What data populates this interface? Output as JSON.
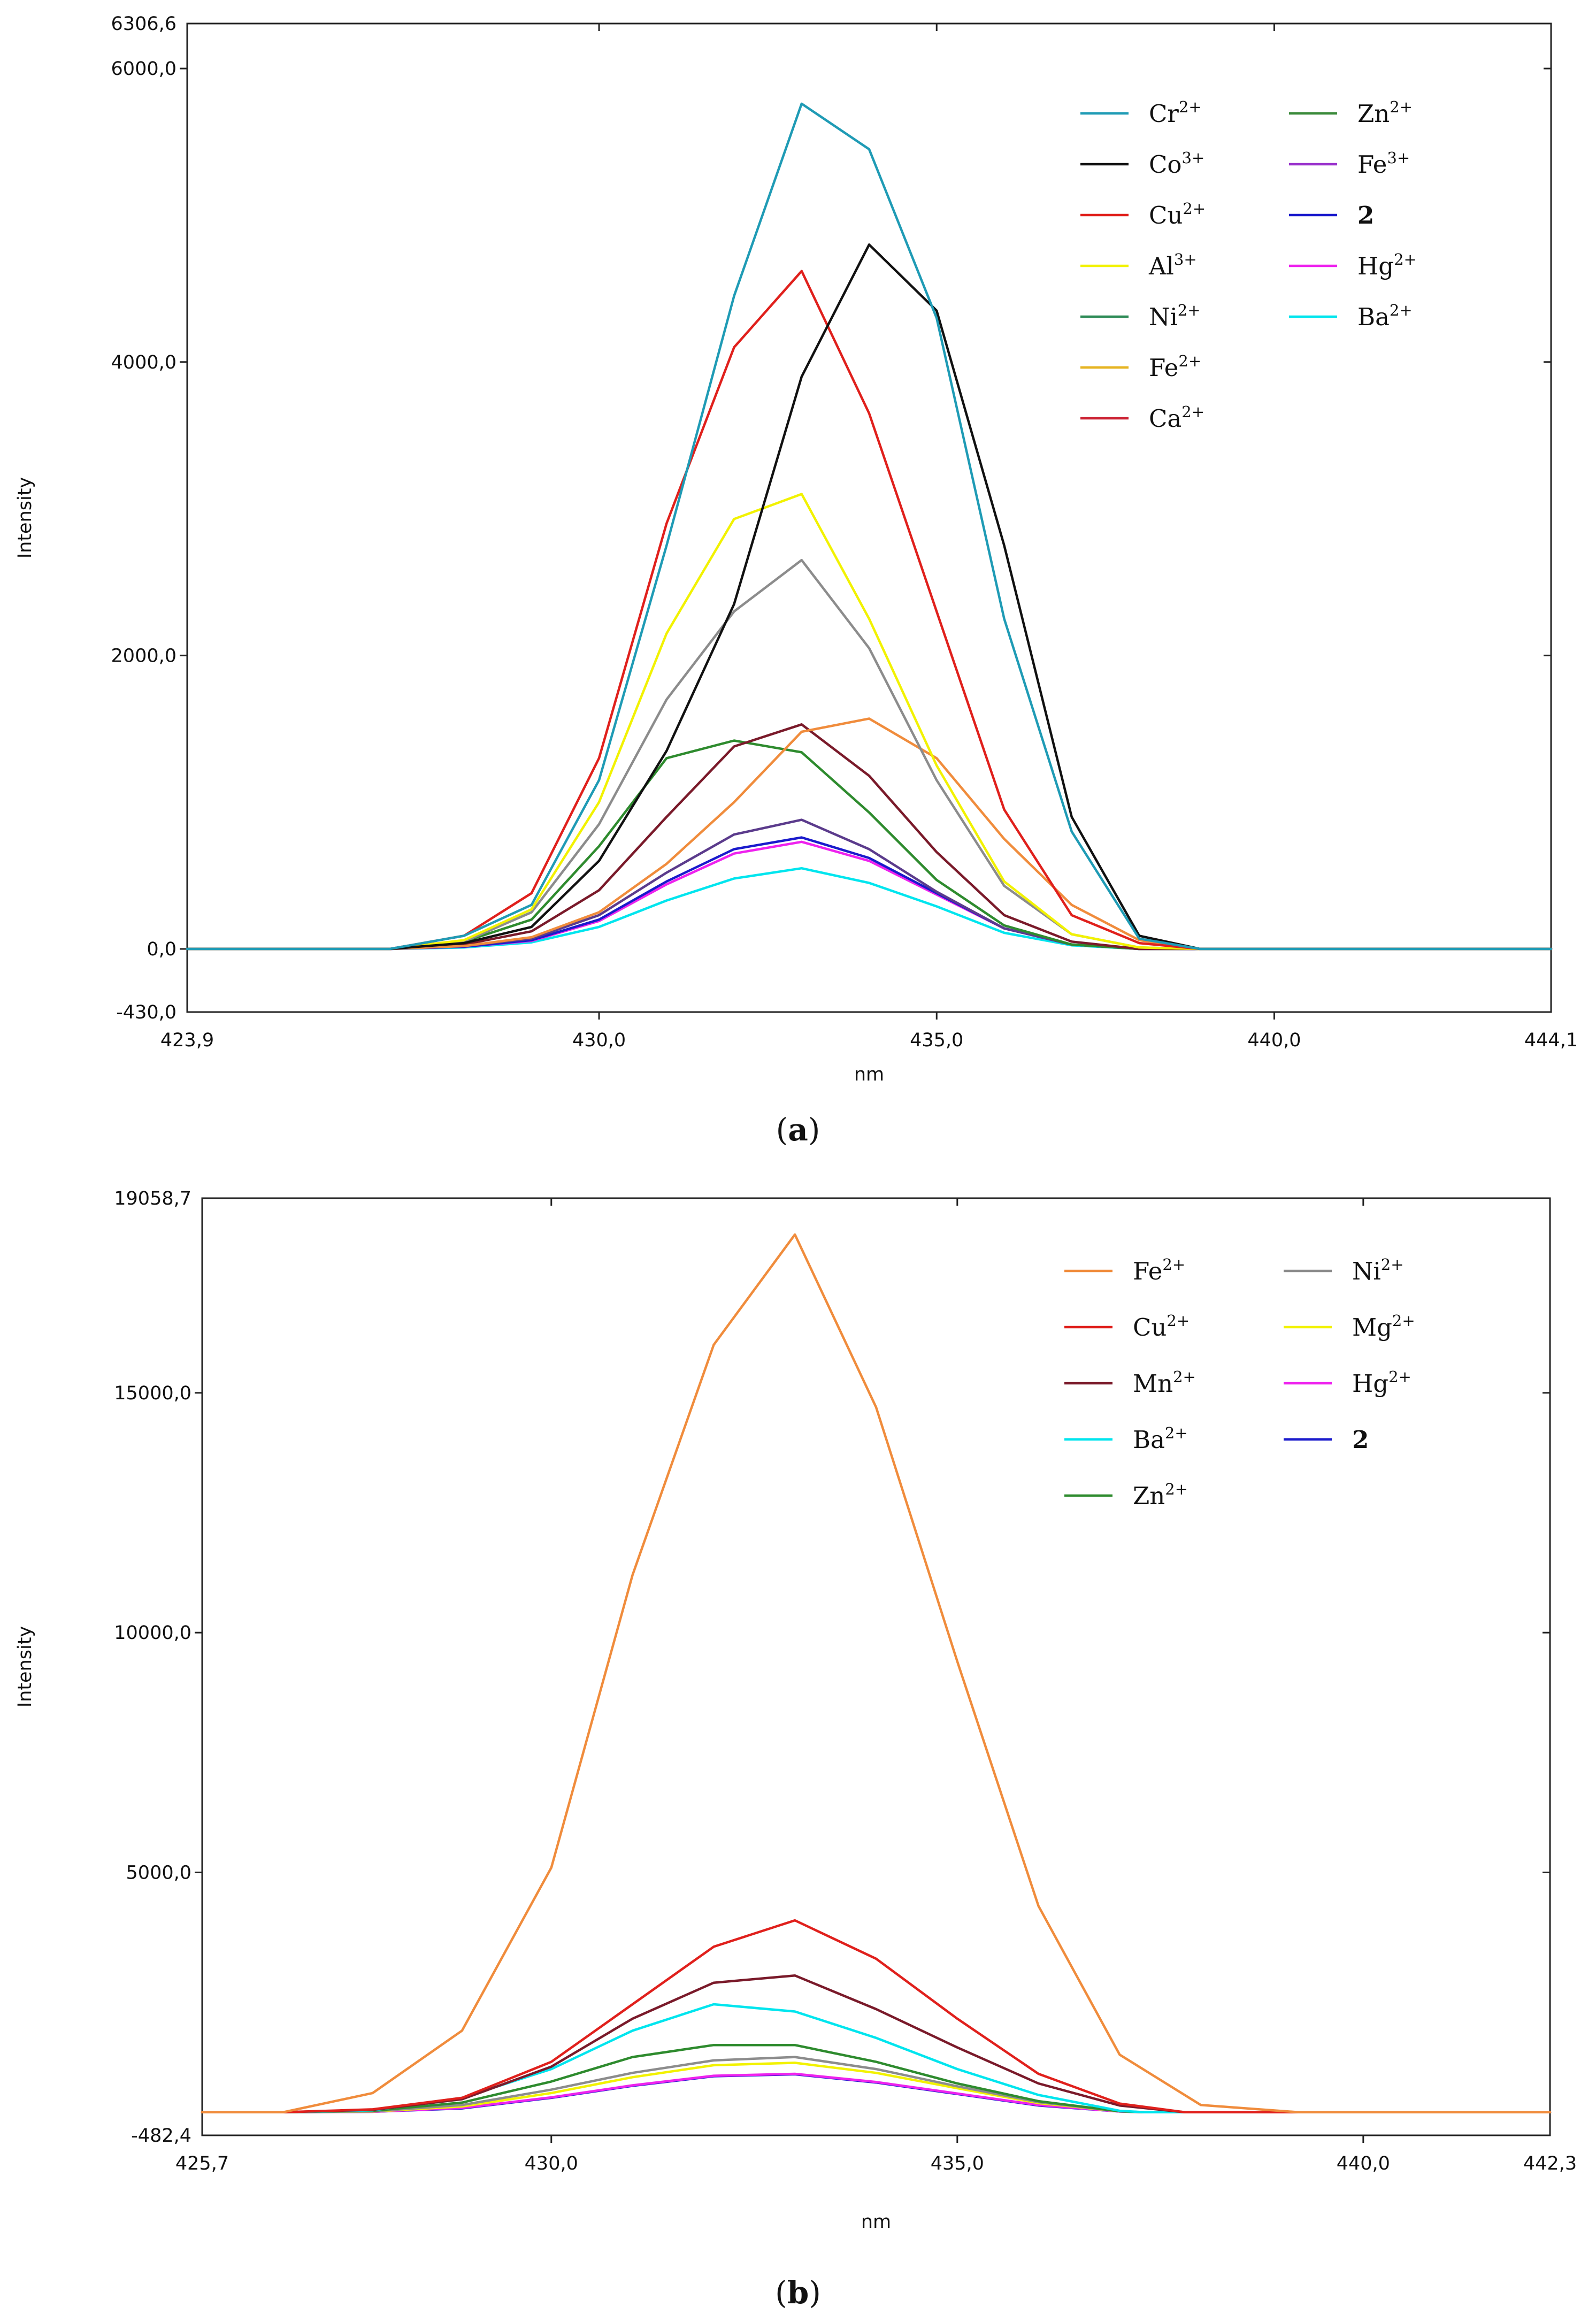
{
  "captions": [
    "(a)",
    "(b)"
  ],
  "caption_letters": [
    "a",
    "b"
  ],
  "chart_data": [
    {
      "type": "line",
      "panel": "a",
      "xlabel": "nm",
      "ylabel": "Intensity",
      "xlim": [
        423.9,
        444.1
      ],
      "ylim": [
        -430.0,
        6306.6
      ],
      "xticks": [
        430.0,
        435.0,
        440.0
      ],
      "yticks": [
        0.0,
        2000.0,
        4000.0,
        6000.0
      ],
      "x_edge_labels": [
        "423,9",
        "444,1"
      ],
      "y_edge_labels": [
        "-430,0",
        "6306,6"
      ],
      "xtick_labels": [
        "430,0",
        "435,0",
        "440,0"
      ],
      "ytick_labels": [
        "0,0",
        "2000,0",
        "4000,0",
        "6000,0"
      ],
      "legend_columns": 2,
      "legend": [
        {
          "base": "Cr",
          "sup": "2+",
          "color": "#1f9bb5"
        },
        {
          "base": "Co",
          "sup": "3+",
          "color": "#111111"
        },
        {
          "base": "Cu",
          "sup": "2+",
          "color": "#e0201c"
        },
        {
          "base": "Al",
          "sup": "3+",
          "color": "#f2f200"
        },
        {
          "base": "Ni",
          "sup": "2+",
          "color": "#2e8b57"
        },
        {
          "base": "Fe",
          "sup": "2+",
          "color": "#e6b422"
        },
        {
          "base": "Ca",
          "sup": "2+",
          "color": "#cc2233"
        },
        {
          "base": "Zn",
          "sup": "2+",
          "color": "#3a8a3a"
        },
        {
          "base": "Fe",
          "sup": "3+",
          "color": "#9932cc"
        },
        {
          "base": "2",
          "sup": "",
          "color": "#1a1acc",
          "bold": true
        },
        {
          "base": "Hg",
          "sup": "2+",
          "color": "#ee22ee"
        },
        {
          "base": "Ba",
          "sup": "2+",
          "color": "#00e5ee"
        }
      ],
      "series": [
        {
          "name": "Cr2+",
          "color": "#1f9bb5",
          "x": [
            423.9,
            426.9,
            428.0,
            429.0,
            430.0,
            431.0,
            432.0,
            433.0,
            434.0,
            435.0,
            436.0,
            437.0,
            438.0,
            438.9,
            444.1
          ],
          "y": [
            0,
            0,
            90,
            300,
            1150,
            2750,
            4450,
            5760,
            5450,
            4300,
            2250,
            800,
            70,
            0,
            0
          ]
        },
        {
          "name": "Co3+",
          "color": "#111111",
          "x": [
            423.9,
            426.9,
            428.0,
            429.0,
            430.0,
            431.0,
            432.0,
            433.0,
            434.0,
            435.0,
            436.0,
            437.0,
            438.0,
            438.9,
            444.1
          ],
          "y": [
            0,
            0,
            40,
            150,
            600,
            1350,
            2350,
            3900,
            4800,
            4350,
            2750,
            900,
            90,
            0,
            0
          ]
        },
        {
          "name": "Cu2+",
          "color": "#e0201c",
          "x": [
            423.9,
            426.9,
            428.0,
            429.0,
            430.0,
            431.0,
            432.0,
            433.0,
            434.0,
            435.0,
            436.0,
            437.0,
            438.0,
            438.9,
            444.1
          ],
          "y": [
            0,
            0,
            90,
            380,
            1300,
            2900,
            4100,
            4620,
            3650,
            2300,
            950,
            230,
            40,
            0,
            0
          ]
        },
        {
          "name": "Al3+",
          "color": "#f2f200",
          "x": [
            423.9,
            426.9,
            428.0,
            429.0,
            430.0,
            431.0,
            432.0,
            433.0,
            434.0,
            435.0,
            436.0,
            437.0,
            438.0,
            438.9,
            444.1
          ],
          "y": [
            0,
            0,
            60,
            270,
            1000,
            2150,
            2930,
            3100,
            2250,
            1250,
            460,
            100,
            10,
            0,
            0
          ]
        },
        {
          "name": "Ni2+",
          "color": "#8c8c8c",
          "x": [
            423.9,
            426.9,
            428.0,
            429.0,
            430.0,
            431.0,
            432.0,
            433.0,
            434.0,
            435.0,
            436.0,
            437.0,
            438.0,
            438.9,
            444.1
          ],
          "y": [
            0,
            0,
            50,
            250,
            850,
            1700,
            2300,
            2650,
            2050,
            1150,
            430,
            100,
            10,
            0,
            0
          ]
        },
        {
          "name": "Fe2+",
          "color": "#f08c3c",
          "x": [
            423.9,
            426.9,
            428.0,
            429.0,
            430.0,
            431.0,
            432.0,
            433.0,
            434.0,
            435.0,
            436.0,
            437.0,
            438.0,
            438.9,
            444.1
          ],
          "y": [
            0,
            0,
            20,
            80,
            250,
            580,
            1000,
            1480,
            1570,
            1300,
            750,
            300,
            60,
            0,
            0
          ]
        },
        {
          "name": "Ca2+",
          "color": "#7a1a2a",
          "x": [
            423.9,
            426.9,
            428.0,
            429.0,
            430.0,
            431.0,
            432.0,
            433.0,
            434.0,
            435.0,
            436.0,
            437.0,
            438.0,
            438.9,
            444.1
          ],
          "y": [
            0,
            0,
            30,
            120,
            400,
            900,
            1380,
            1530,
            1180,
            660,
            230,
            50,
            0,
            0,
            0
          ]
        },
        {
          "name": "Zn2+",
          "color": "#2e8b2e",
          "x": [
            423.9,
            426.9,
            428.0,
            429.0,
            430.0,
            431.0,
            432.0,
            433.0,
            434.0,
            435.0,
            436.0,
            437.0,
            438.0,
            438.9,
            444.1
          ],
          "y": [
            0,
            0,
            50,
            200,
            700,
            1300,
            1420,
            1340,
            930,
            470,
            160,
            30,
            0,
            0,
            0
          ]
        },
        {
          "name": "Fe3+",
          "color": "#5b3b8c",
          "x": [
            423.9,
            426.9,
            428.0,
            429.0,
            430.0,
            431.0,
            432.0,
            433.0,
            434.0,
            435.0,
            436.0,
            437.0,
            438.0,
            438.9,
            444.1
          ],
          "y": [
            0,
            0,
            20,
            70,
            230,
            520,
            780,
            880,
            680,
            390,
            140,
            30,
            0,
            0,
            0
          ]
        },
        {
          "name": "2",
          "color": "#1a1acc",
          "x": [
            423.9,
            426.9,
            428.0,
            429.0,
            430.0,
            431.0,
            432.0,
            433.0,
            434.0,
            435.0,
            436.0,
            437.0,
            438.0,
            438.9,
            444.1
          ],
          "y": [
            0,
            0,
            15,
            60,
            200,
            460,
            680,
            760,
            620,
            380,
            140,
            30,
            0,
            0,
            0
          ]
        },
        {
          "name": "Hg2+",
          "color": "#ee22ee",
          "x": [
            423.9,
            426.9,
            428.0,
            429.0,
            430.0,
            431.0,
            432.0,
            433.0,
            434.0,
            435.0,
            436.0,
            437.0,
            438.0,
            438.9,
            444.1
          ],
          "y": [
            0,
            0,
            15,
            55,
            190,
            440,
            650,
            730,
            600,
            370,
            140,
            30,
            0,
            0,
            0
          ]
        },
        {
          "name": "Ba2+",
          "color": "#00e5ee",
          "x": [
            423.9,
            426.9,
            428.0,
            429.0,
            430.0,
            431.0,
            432.0,
            433.0,
            434.0,
            435.0,
            436.0,
            437.0,
            438.0,
            438.9,
            444.1
          ],
          "y": [
            0,
            0,
            10,
            45,
            150,
            330,
            480,
            550,
            450,
            290,
            110,
            25,
            0,
            0,
            0
          ]
        }
      ]
    },
    {
      "type": "line",
      "panel": "b",
      "xlabel": "nm",
      "ylabel": "Intensity",
      "xlim": [
        425.7,
        442.3
      ],
      "ylim": [
        -482.4,
        19058.7
      ],
      "xticks": [
        430.0,
        435.0,
        440.0
      ],
      "yticks": [
        5000.0,
        10000.0,
        15000.0
      ],
      "x_edge_labels": [
        "425,7",
        "442,3"
      ],
      "y_edge_labels": [
        "-482,4",
        "19058,7"
      ],
      "xtick_labels": [
        "430,0",
        "435,0",
        "440,0"
      ],
      "ytick_labels": [
        "5000,0",
        "10000,0",
        "15000,0"
      ],
      "legend_columns": 2,
      "legend": [
        {
          "base": "Fe",
          "sup": "2+",
          "color": "#f08c3c"
        },
        {
          "base": "Cu",
          "sup": "2+",
          "color": "#e0201c"
        },
        {
          "base": "Mn",
          "sup": "2+",
          "color": "#7a1a2a"
        },
        {
          "base": "Ba",
          "sup": "2+",
          "color": "#00e5ee"
        },
        {
          "base": "Zn",
          "sup": "2+",
          "color": "#2e8b2e"
        },
        {
          "base": "Ni",
          "sup": "2+",
          "color": "#8c8c8c"
        },
        {
          "base": "Mg",
          "sup": "2+",
          "color": "#f2f200"
        },
        {
          "base": "Hg",
          "sup": "2+",
          "color": "#ee22ee"
        },
        {
          "base": "2",
          "sup": "",
          "color": "#1a1acc",
          "bold": true
        }
      ],
      "series": [
        {
          "name": "Fe2+",
          "color": "#f08c3c",
          "x": [
            425.7,
            426.7,
            427.8,
            428.9,
            430.0,
            431.0,
            432.0,
            433.0,
            434.0,
            435.0,
            436.0,
            437.0,
            438.0,
            439.2,
            442.3
          ],
          "y": [
            0,
            0,
            400,
            1700,
            5100,
            11200,
            16000,
            18300,
            14700,
            9400,
            4300,
            1200,
            150,
            0,
            0
          ]
        },
        {
          "name": "Cu2+",
          "color": "#e0201c",
          "x": [
            425.7,
            426.7,
            427.8,
            428.9,
            430.0,
            431.0,
            432.0,
            433.0,
            434.0,
            435.0,
            436.0,
            437.0,
            437.8,
            442.3
          ],
          "y": [
            0,
            0,
            60,
            300,
            1050,
            2250,
            3450,
            4000,
            3200,
            1950,
            800,
            180,
            0,
            0
          ]
        },
        {
          "name": "Mn2+",
          "color": "#7a1a2a",
          "x": [
            425.7,
            426.7,
            427.8,
            428.9,
            430.0,
            431.0,
            432.0,
            433.0,
            434.0,
            435.0,
            436.0,
            437.0,
            437.8,
            442.3
          ],
          "y": [
            0,
            0,
            50,
            270,
            950,
            1950,
            2700,
            2850,
            2150,
            1350,
            600,
            140,
            0,
            0
          ]
        },
        {
          "name": "Ba2+",
          "color": "#00e5ee",
          "x": [
            425.7,
            426.7,
            427.8,
            428.9,
            430.0,
            431.0,
            432.0,
            433.0,
            434.0,
            435.0,
            436.0,
            437.0,
            437.3,
            442.3
          ],
          "y": [
            0,
            0,
            40,
            300,
            900,
            1700,
            2250,
            2100,
            1550,
            900,
            360,
            30,
            0,
            0
          ]
        },
        {
          "name": "Zn2+",
          "color": "#2e8b2e",
          "x": [
            425.7,
            426.7,
            427.8,
            428.9,
            430.0,
            431.0,
            432.0,
            433.0,
            434.0,
            435.0,
            436.0,
            437.0,
            437.3,
            442.3
          ],
          "y": [
            0,
            0,
            30,
            200,
            640,
            1150,
            1400,
            1400,
            1050,
            600,
            230,
            20,
            0,
            0
          ]
        },
        {
          "name": "Ni2+",
          "color": "#8c8c8c",
          "x": [
            425.7,
            426.7,
            427.8,
            428.9,
            430.0,
            431.0,
            432.0,
            433.0,
            434.0,
            435.0,
            436.0,
            437.0,
            437.3,
            442.3
          ],
          "y": [
            0,
            0,
            20,
            150,
            470,
            820,
            1080,
            1150,
            900,
            540,
            210,
            20,
            0,
            0
          ]
        },
        {
          "name": "Mg2+",
          "color": "#f2f200",
          "x": [
            425.7,
            426.7,
            427.8,
            428.9,
            430.0,
            431.0,
            432.0,
            433.0,
            434.0,
            435.0,
            436.0,
            437.0,
            437.3,
            442.3
          ],
          "y": [
            0,
            0,
            15,
            120,
            400,
            730,
            980,
            1030,
            820,
            500,
            190,
            20,
            0,
            0
          ]
        },
        {
          "name": "Hg2+",
          "color": "#ee22ee",
          "x": [
            425.7,
            426.7,
            427.8,
            428.9,
            430.0,
            431.0,
            432.0,
            433.0,
            434.0,
            435.0,
            436.0,
            437.0,
            437.3,
            442.3
          ],
          "y": [
            0,
            0,
            10,
            90,
            310,
            560,
            760,
            800,
            630,
            390,
            150,
            15,
            0,
            0
          ]
        },
        {
          "name": "2",
          "color": "#1a1acc",
          "x": [
            425.7,
            426.7,
            427.8,
            428.9,
            430.0,
            431.0,
            432.0,
            433.0,
            434.0,
            435.0,
            436.0,
            437.0,
            437.3,
            442.3
          ],
          "y": [
            0,
            0,
            10,
            80,
            300,
            550,
            750,
            790,
            620,
            380,
            140,
            15,
            0,
            0
          ]
        }
      ]
    }
  ]
}
